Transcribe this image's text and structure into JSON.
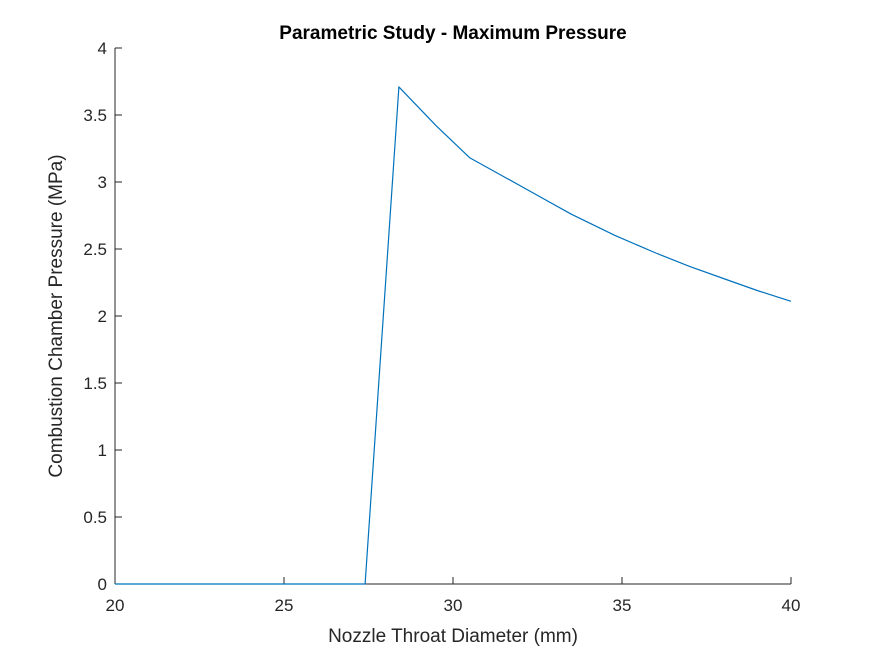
{
  "chart_data": {
    "type": "line",
    "title": "Parametric Study - Maximum Pressure",
    "xlabel": "Nozzle Throat Diameter (mm)",
    "ylabel": "Combustion Chamber Pressure (MPa)",
    "xlim": [
      20,
      40
    ],
    "ylim": [
      0,
      4
    ],
    "xticks": [
      20,
      25,
      30,
      35,
      40
    ],
    "yticks": [
      0,
      0.5,
      1,
      1.5,
      2,
      2.5,
      3,
      3.5,
      4
    ],
    "xtick_labels": [
      "20",
      "25",
      "30",
      "35",
      "40"
    ],
    "ytick_labels": [
      "0",
      "0.5",
      "1",
      "1.5",
      "2",
      "2.5",
      "3",
      "3.5",
      "4"
    ],
    "grid": false,
    "series": [
      {
        "color": "#0072BD",
        "x": [
          20,
          21,
          22,
          23,
          24,
          25,
          26,
          27,
          27.4,
          28.4,
          29.5,
          30.5,
          31.5,
          32.5,
          33.5,
          34.8,
          36,
          37,
          38,
          39,
          40
        ],
        "y": [
          0,
          0,
          0,
          0,
          0,
          0,
          0,
          0,
          0,
          3.71,
          3.42,
          3.18,
          3.04,
          2.9,
          2.76,
          2.6,
          2.47,
          2.37,
          2.28,
          2.19,
          2.11
        ]
      }
    ]
  }
}
